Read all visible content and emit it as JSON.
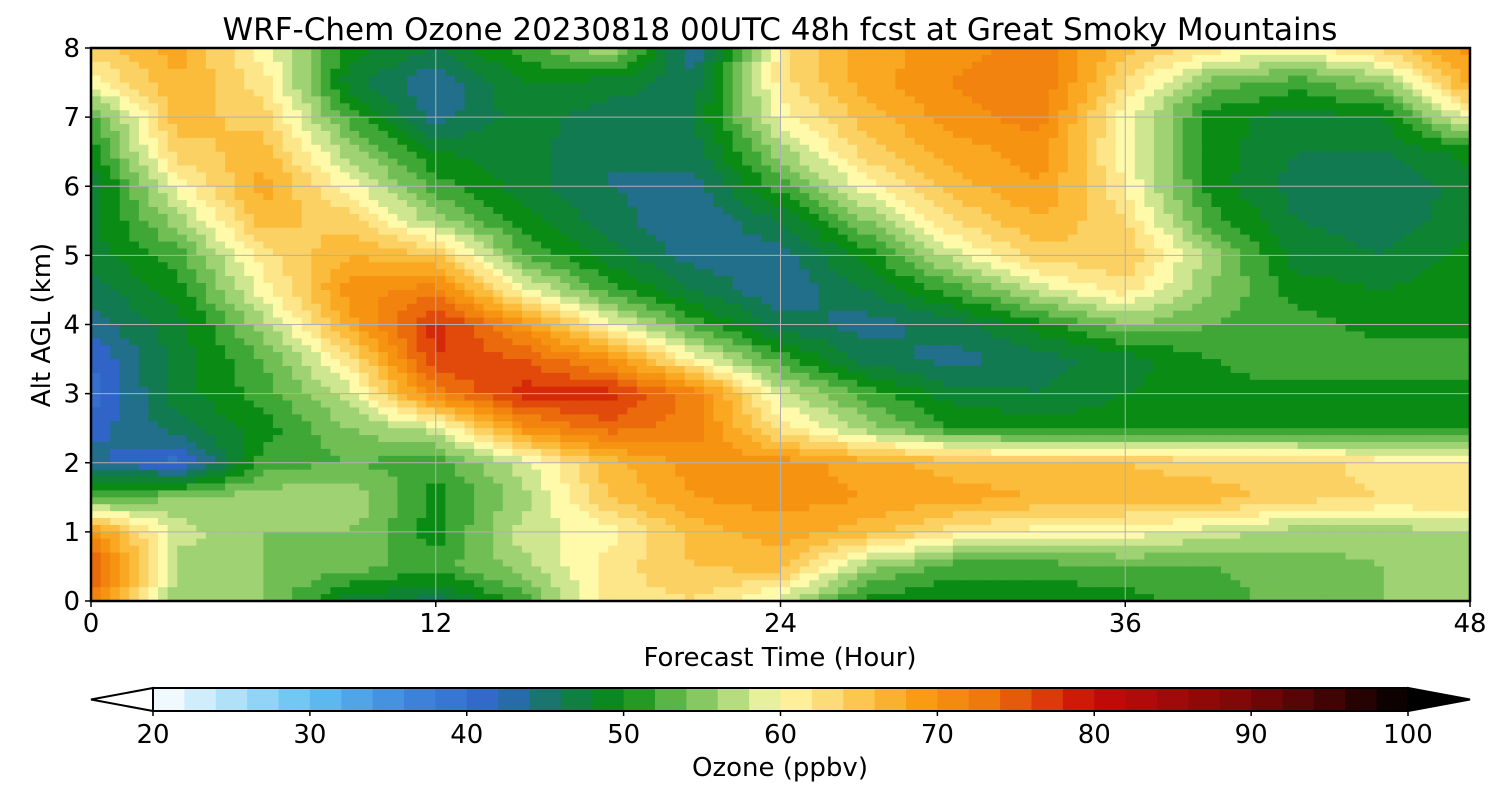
{
  "chart_data": {
    "type": "heatmap",
    "title": "WRF-Chem Ozone  20230818 00UTC 48h fcst at Great Smoky Mountains",
    "xlabel": "Forecast Time (Hour)",
    "ylabel": "Alt AGL (km)",
    "xlim": [
      0,
      48
    ],
    "ylim": [
      0,
      8
    ],
    "x_ticks": [
      0,
      12,
      24,
      36,
      48
    ],
    "y_ticks": [
      0,
      1,
      2,
      3,
      4,
      5,
      6,
      7,
      8
    ],
    "grid": true,
    "x": [
      0,
      3,
      6,
      9,
      12,
      15,
      18,
      21,
      24,
      27,
      30,
      33,
      36,
      39,
      42,
      45,
      48
    ],
    "y": [
      0,
      0.5,
      1,
      1.5,
      2,
      2.5,
      3,
      3.5,
      4,
      4.5,
      5,
      5.5,
      6,
      6.5,
      7,
      7.5,
      8
    ],
    "values": [
      [
        72,
        56,
        55,
        48,
        46,
        52,
        62,
        63,
        58,
        50,
        49,
        49,
        50,
        52,
        54,
        55,
        57
      ],
      [
        76,
        56,
        55,
        54,
        52,
        56,
        62,
        65,
        66,
        56,
        52,
        52,
        53,
        53,
        54,
        55,
        57
      ],
      [
        70,
        58,
        55,
        55,
        50,
        58,
        60,
        66,
        68,
        66,
        62,
        60,
        60,
        58,
        56,
        56,
        57
      ],
      [
        52,
        55,
        56,
        57,
        50,
        56,
        65,
        69,
        70,
        69,
        68,
        67,
        66,
        66,
        64,
        63,
        63
      ],
      [
        44,
        40,
        52,
        53,
        52,
        58,
        66,
        70,
        70,
        68,
        66,
        65,
        65,
        64,
        64,
        62,
        62
      ],
      [
        42,
        46,
        50,
        55,
        58,
        70,
        74,
        72,
        62,
        56,
        51,
        50,
        50,
        50,
        50,
        50,
        50
      ],
      [
        40,
        48,
        52,
        58,
        72,
        78,
        78,
        72,
        58,
        52,
        48,
        47,
        49,
        50,
        50,
        50,
        50
      ],
      [
        41,
        48,
        53,
        62,
        77,
        75,
        70,
        60,
        52,
        46,
        44,
        46,
        48,
        51,
        53,
        52,
        52
      ],
      [
        44,
        48,
        56,
        68,
        78,
        70,
        60,
        52,
        46,
        44,
        46,
        50,
        55,
        53,
        52,
        50,
        50
      ],
      [
        46,
        50,
        60,
        70,
        72,
        60,
        52,
        47,
        43,
        47,
        52,
        58,
        62,
        55,
        50,
        49,
        50
      ],
      [
        48,
        52,
        62,
        67,
        65,
        53,
        48,
        44,
        44,
        50,
        58,
        64,
        65,
        56,
        48,
        47,
        50
      ],
      [
        48,
        56,
        66,
        64,
        56,
        50,
        46,
        43,
        47,
        55,
        63,
        67,
        63,
        52,
        47,
        46,
        48
      ],
      [
        47,
        60,
        68,
        60,
        52,
        48,
        45,
        44,
        52,
        60,
        66,
        69,
        61,
        50,
        46,
        45,
        48
      ],
      [
        50,
        64,
        66,
        56,
        49,
        48,
        45,
        46,
        56,
        64,
        68,
        70,
        60,
        50,
        47,
        47,
        50
      ],
      [
        52,
        66,
        64,
        52,
        44,
        48,
        46,
        47,
        60,
        66,
        70,
        72,
        60,
        50,
        48,
        49,
        60
      ],
      [
        60,
        67,
        62,
        48,
        43,
        49,
        48,
        46,
        62,
        68,
        71,
        73,
        63,
        54,
        52,
        55,
        68
      ],
      [
        64,
        68,
        60,
        50,
        47,
        52,
        57,
        43,
        62,
        68,
        70,
        72,
        66,
        62,
        60,
        64,
        70
      ]
    ],
    "colorbar": {
      "label": "Ozone  (ppbv)",
      "min": 20,
      "max": 100,
      "ticks": [
        20,
        30,
        40,
        50,
        60,
        70,
        80,
        90,
        100
      ],
      "extend": "both",
      "stops": [
        {
          "v": 20,
          "c": "#ffffff"
        },
        {
          "v": 30,
          "c": "#62c2f2"
        },
        {
          "v": 36,
          "c": "#3f88dc"
        },
        {
          "v": 42,
          "c": "#3064c6"
        },
        {
          "v": 46,
          "c": "#127a50"
        },
        {
          "v": 50,
          "c": "#0a8c14"
        },
        {
          "v": 53,
          "c": "#5ab446"
        },
        {
          "v": 57,
          "c": "#b6dc82"
        },
        {
          "v": 60,
          "c": "#fffaaa"
        },
        {
          "v": 63,
          "c": "#fcdc78"
        },
        {
          "v": 66,
          "c": "#fbbc3c"
        },
        {
          "v": 69,
          "c": "#f99c14"
        },
        {
          "v": 73,
          "c": "#ee7a0c"
        },
        {
          "v": 77,
          "c": "#dc3a0a"
        },
        {
          "v": 80,
          "c": "#c80a0a"
        },
        {
          "v": 85,
          "c": "#a00a0a"
        },
        {
          "v": 90,
          "c": "#780808"
        },
        {
          "v": 95,
          "c": "#400404"
        },
        {
          "v": 100,
          "c": "#000000"
        }
      ]
    }
  }
}
